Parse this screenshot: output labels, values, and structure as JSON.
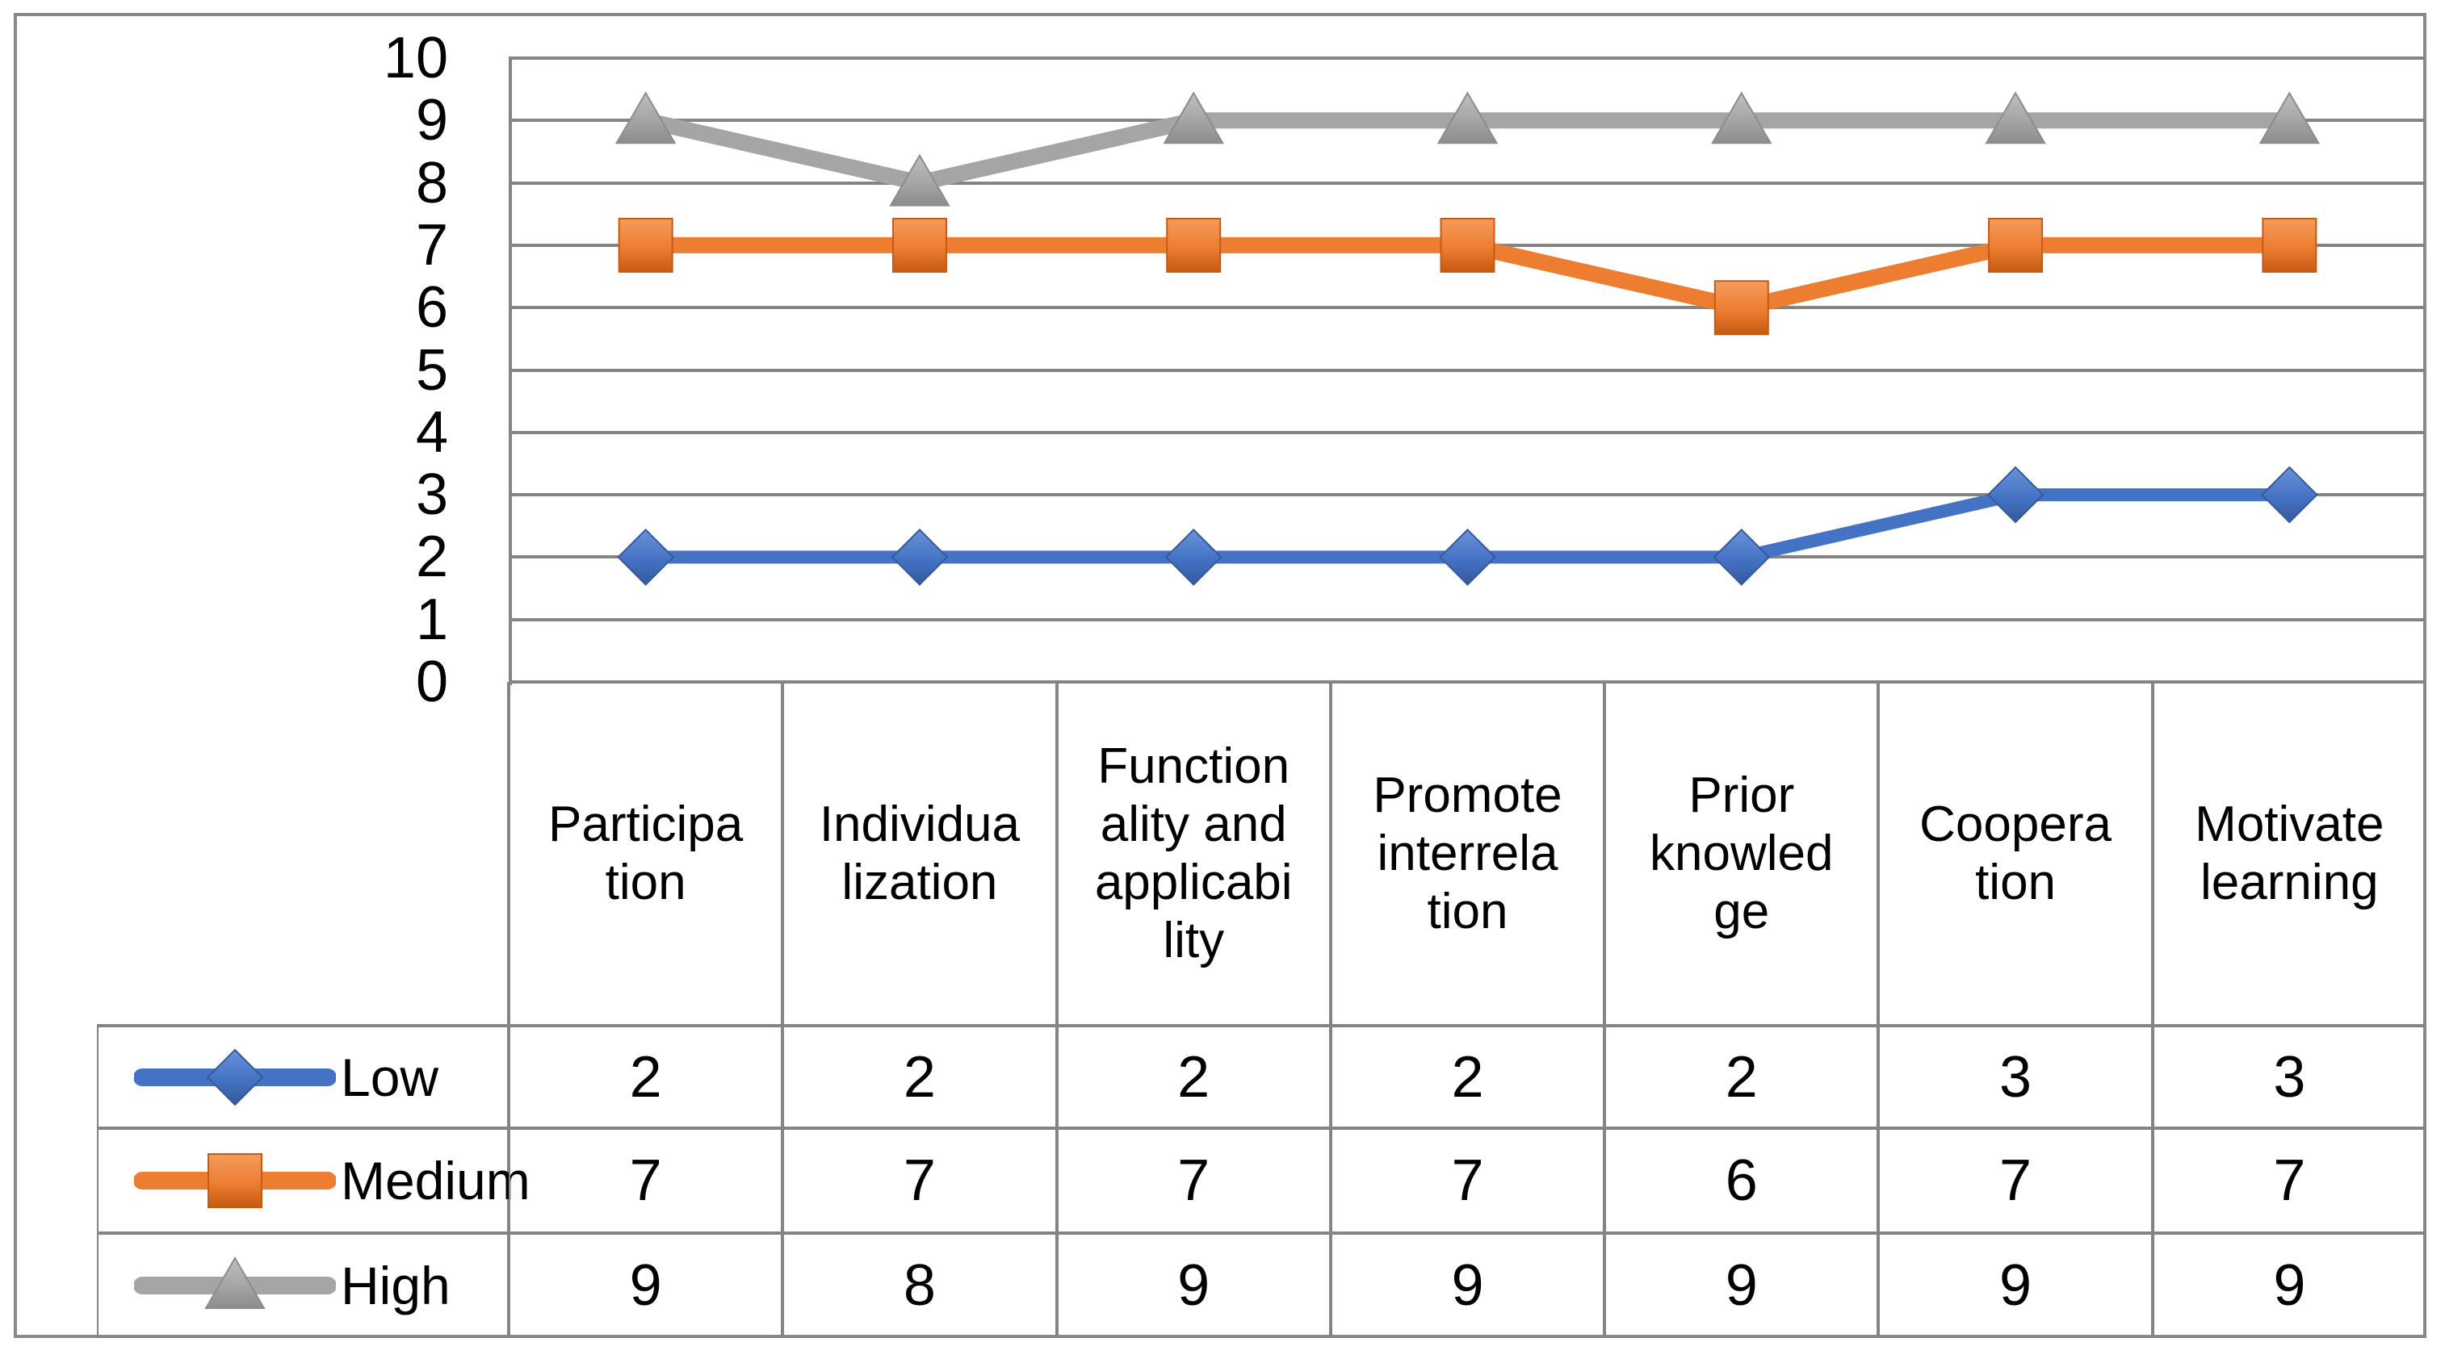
{
  "figure": {
    "background": "#FFFFFF",
    "frame_color": "#8A8A8A",
    "gridline_color": "#848484",
    "text_color": "#000000"
  },
  "chart_data": {
    "type": "line",
    "title": "",
    "xlabel": "",
    "ylabel": "",
    "grid": true,
    "legend_position": "table-left",
    "categories": [
      "Participation",
      "Individualization",
      "Functionality and applicability",
      "Promote interrelation",
      "Prior knowledge",
      "Cooperation",
      "Motivate learning"
    ],
    "categories_wrapped": [
      [
        "Participa",
        "tion"
      ],
      [
        "Individua",
        "lization"
      ],
      [
        "Function",
        "ality and",
        "applicabi",
        "lity"
      ],
      [
        "Promote",
        "interrela",
        "tion"
      ],
      [
        "Prior",
        "knowled",
        "ge"
      ],
      [
        "Coopera",
        "tion"
      ],
      [
        "Motivate",
        "learning"
      ]
    ],
    "series": [
      {
        "name": "Low",
        "marker": "diamond",
        "color": "#4472C4",
        "color_light": "#6A92D8",
        "color_dark": "#35599B",
        "line_width": 16,
        "values": [
          2,
          2,
          2,
          2,
          2,
          3,
          3
        ]
      },
      {
        "name": "Medium",
        "marker": "square",
        "color": "#ED7D31",
        "color_light": "#F59B5C",
        "color_dark": "#C55A11",
        "line_width": 20,
        "values": [
          7,
          7,
          7,
          7,
          6,
          7,
          7
        ]
      },
      {
        "name": "High",
        "marker": "triangle",
        "color": "#A5A5A5",
        "color_light": "#BFBFBF",
        "color_dark": "#8C8C8C",
        "line_width": 20,
        "values": [
          9,
          8,
          9,
          9,
          9,
          9,
          9
        ]
      }
    ],
    "y_axis": {
      "min": 0,
      "max": 10,
      "step": 1,
      "tick_labels": [
        "10",
        "9",
        "8",
        "7",
        "6",
        "5",
        "4",
        "3",
        "2",
        "1",
        "0"
      ]
    }
  }
}
